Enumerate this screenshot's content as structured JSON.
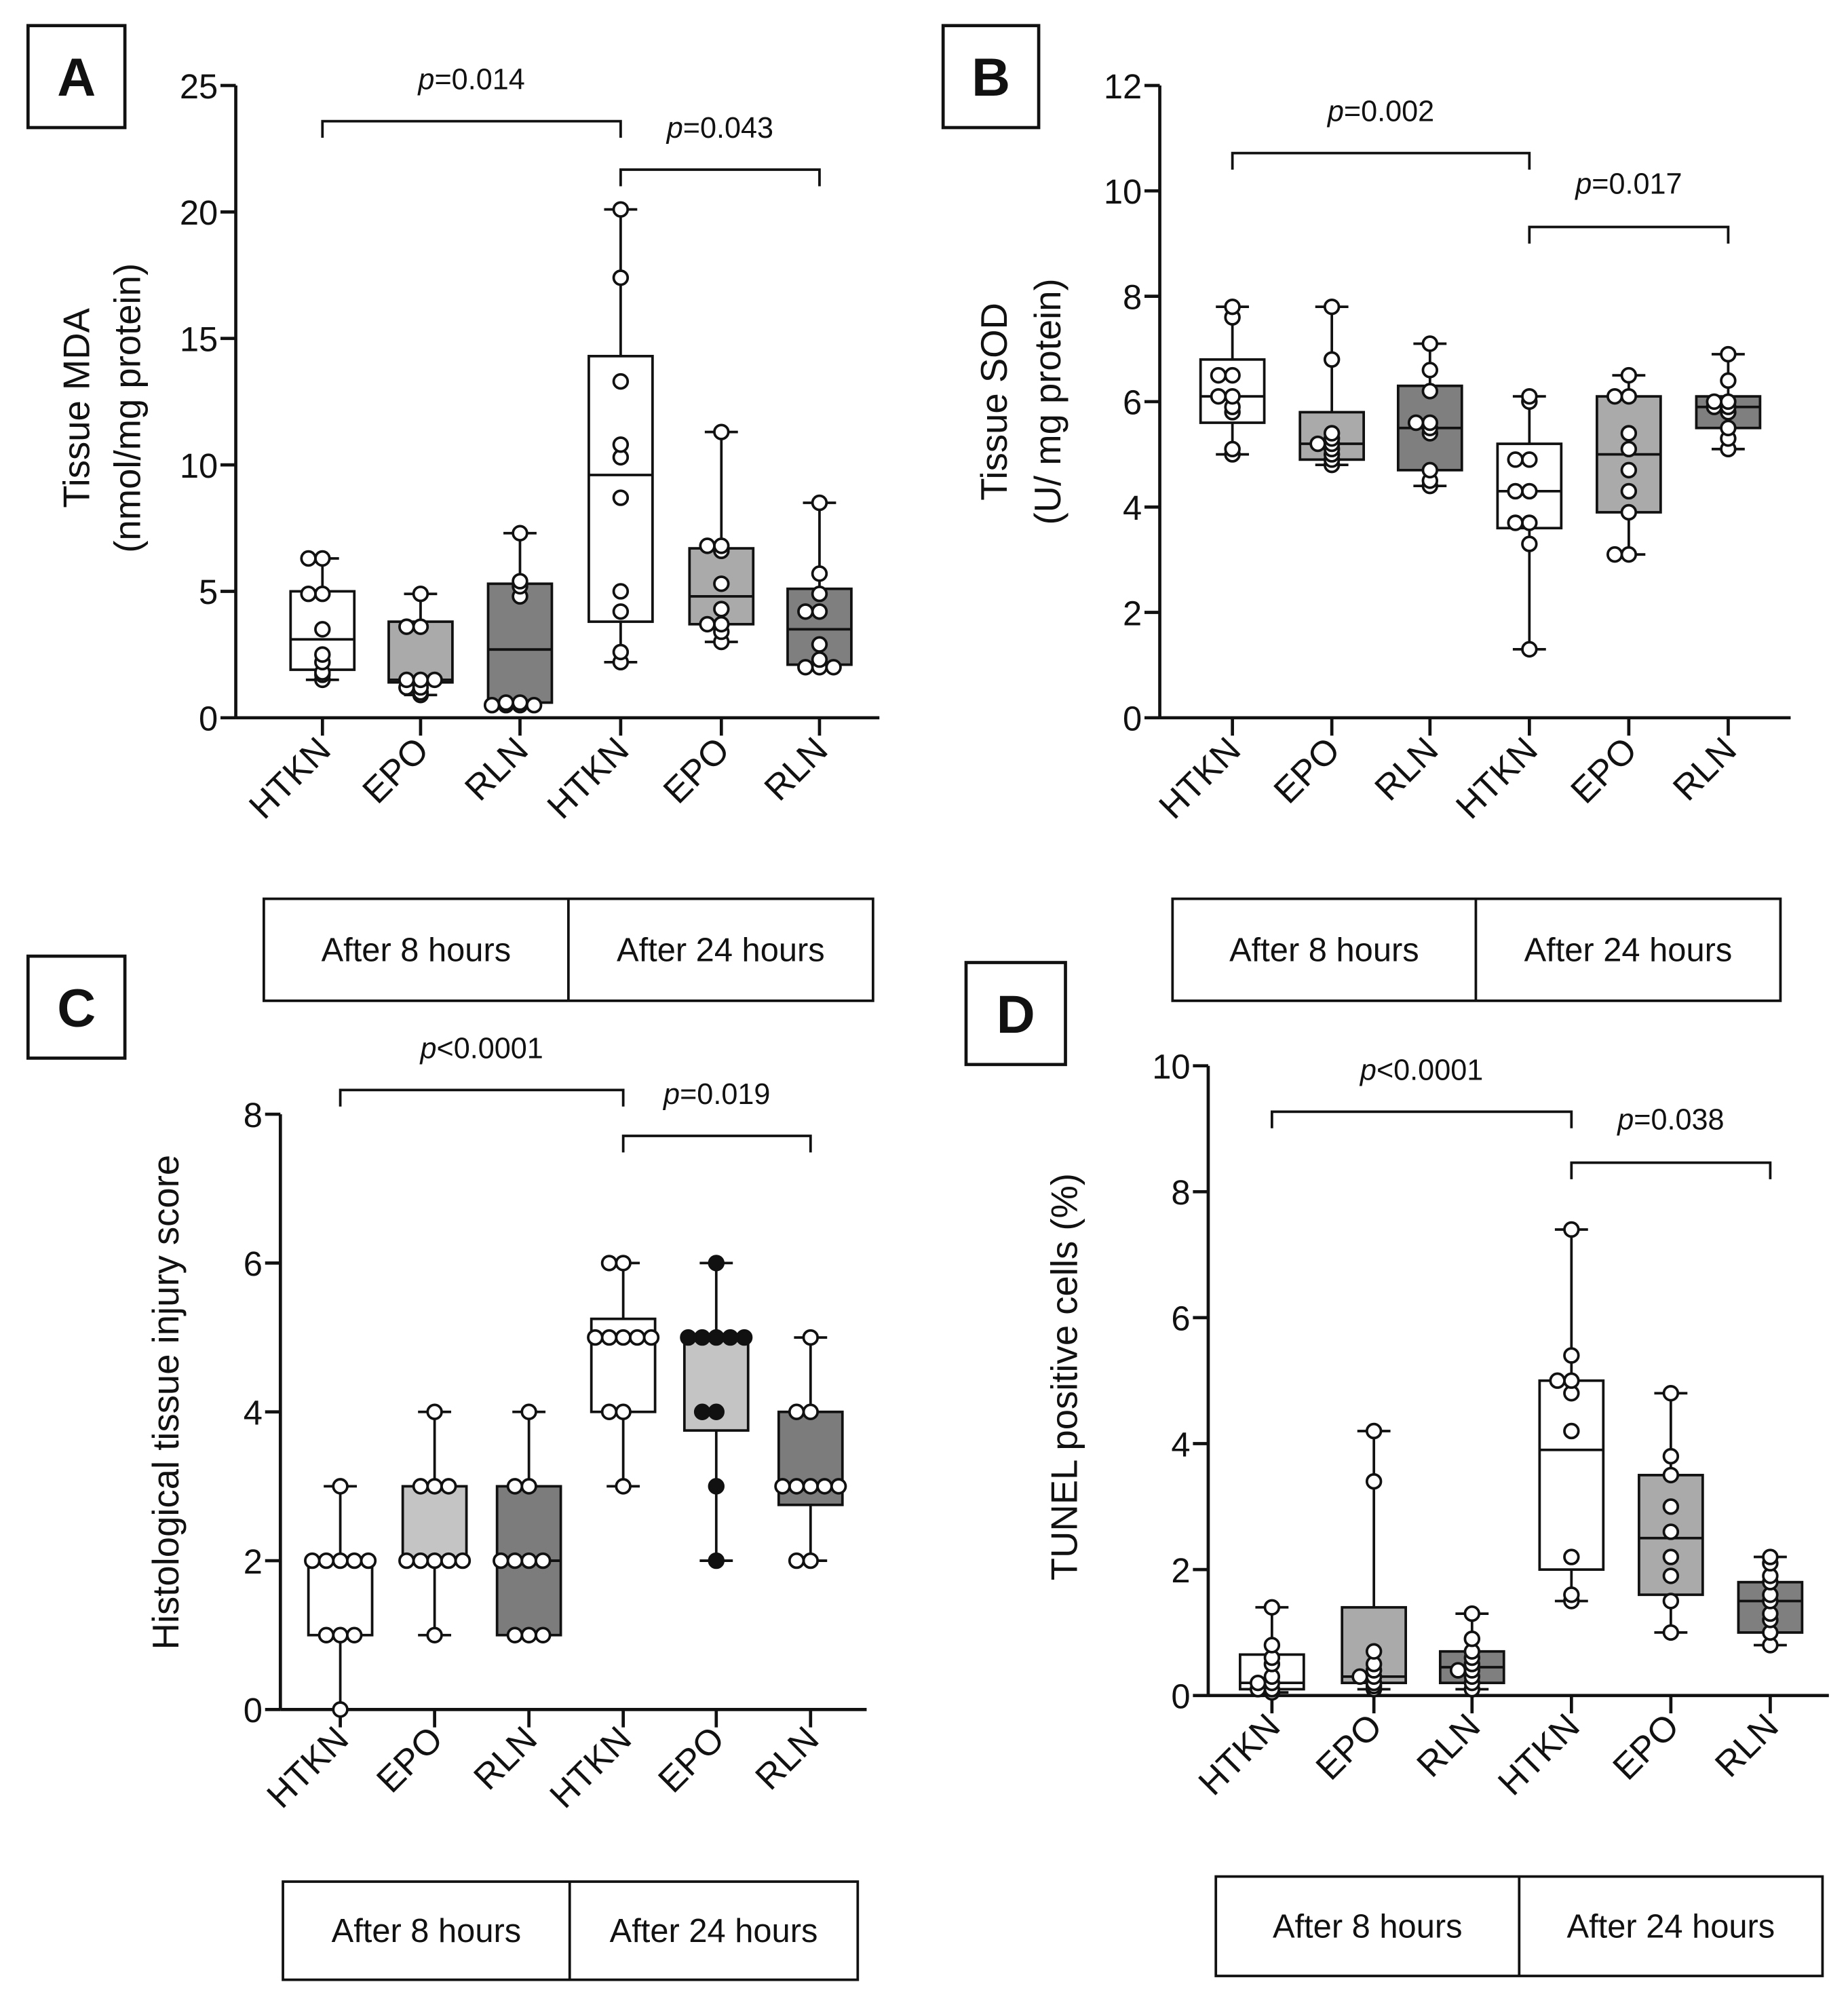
{
  "chart_data": [
    {
      "type": "box",
      "panel_label": "A",
      "ylabel": [
        "Tissue MDA",
        "(nmol/mg protein)"
      ],
      "ylim": [
        0,
        25
      ],
      "yticks": [
        0,
        5,
        10,
        15,
        20,
        25
      ],
      "ytick_labels": [
        "0",
        "5",
        "10",
        "15",
        "20",
        "25"
      ],
      "categories": [
        "HTKN",
        "EPO",
        "RLN",
        "HTKN",
        "EPO",
        "RLN"
      ],
      "groups": [
        "After 8 hours",
        "After 24 hours"
      ],
      "annotations": [
        {
          "from": 0,
          "to": 3,
          "p": "p",
          "text": "=0.014"
        },
        {
          "from": 3,
          "to": 5,
          "p": "p",
          "text": "=0.043"
        }
      ],
      "fills": [
        "#ffffff",
        "#a9aaa9",
        "#7f7f7f",
        "#ffffff",
        "#a9aaa9",
        "#7f7f7f"
      ],
      "series": [
        {
          "min": 1.5,
          "q1": 1.9,
          "median": 3.1,
          "q3": 5.0,
          "max": 6.3,
          "points": [
            1.5,
            1.7,
            1.8,
            2.2,
            2.5,
            3.5,
            4.9,
            4.9,
            6.3,
            6.3
          ]
        },
        {
          "min": 0.9,
          "q1": 1.4,
          "median": 1.5,
          "q3": 3.8,
          "max": 4.9,
          "points": [
            0.9,
            1.0,
            1.2,
            1.2,
            1.5,
            1.5,
            1.5,
            3.6,
            3.6,
            4.9
          ]
        },
        {
          "min": 0.5,
          "q1": 0.6,
          "median": 2.7,
          "q3": 5.3,
          "max": 7.3,
          "points": [
            0.5,
            0.5,
            0.5,
            0.5,
            0.6,
            0.6,
            4.8,
            5.2,
            5.4,
            7.3
          ]
        },
        {
          "min": 2.2,
          "q1": 3.8,
          "median": 9.6,
          "q3": 14.3,
          "max": 20.1,
          "points": [
            2.2,
            2.6,
            4.2,
            5.0,
            8.7,
            10.3,
            10.8,
            13.3,
            17.4,
            20.1
          ]
        },
        {
          "min": 3.0,
          "q1": 3.7,
          "median": 4.8,
          "q3": 6.7,
          "max": 11.3,
          "points": [
            3.0,
            3.4,
            3.7,
            3.7,
            4.3,
            5.3,
            6.6,
            6.8,
            6.8,
            11.3
          ]
        },
        {
          "min": 2.0,
          "q1": 2.1,
          "median": 3.5,
          "q3": 5.1,
          "max": 8.5,
          "points": [
            2.0,
            2.0,
            2.0,
            2.3,
            2.9,
            4.2,
            4.2,
            4.9,
            5.7,
            8.5
          ]
        }
      ]
    },
    {
      "type": "box",
      "panel_label": "B",
      "ylabel": [
        "Tissue SOD",
        "(U/ mg protein)"
      ],
      "ylim": [
        0,
        12
      ],
      "yticks": [
        0,
        2,
        4,
        6,
        8,
        10,
        12
      ],
      "ytick_labels": [
        "0",
        "2",
        "4",
        "6",
        "8",
        "10",
        "12"
      ],
      "categories": [
        "HTKN",
        "EPO",
        "RLN",
        "HTKN",
        "EPO",
        "RLN"
      ],
      "groups": [
        "After 8 hours",
        "After 24 hours"
      ],
      "annotations": [
        {
          "from": 0,
          "to": 3,
          "p": "p",
          "text": "=0.002"
        },
        {
          "from": 3,
          "to": 5,
          "p": "p",
          "text": "=0.017"
        }
      ],
      "fills": [
        "#ffffff",
        "#a9aaa9",
        "#7f7f7f",
        "#ffffff",
        "#a9aaa9",
        "#7f7f7f"
      ],
      "series": [
        {
          "min": 5.0,
          "q1": 5.6,
          "median": 6.1,
          "q3": 6.8,
          "max": 7.8,
          "points": [
            5.0,
            5.1,
            5.8,
            5.9,
            6.1,
            6.1,
            6.5,
            6.5,
            7.6,
            7.8
          ]
        },
        {
          "min": 4.8,
          "q1": 4.9,
          "median": 5.2,
          "q3": 5.8,
          "max": 7.8,
          "points": [
            4.8,
            4.9,
            5.0,
            5.1,
            5.2,
            5.2,
            5.3,
            5.4,
            6.8,
            7.8
          ]
        },
        {
          "min": 4.4,
          "q1": 4.7,
          "median": 5.5,
          "q3": 6.3,
          "max": 7.1,
          "points": [
            4.4,
            4.5,
            4.7,
            5.4,
            5.5,
            5.6,
            5.6,
            6.2,
            6.6,
            7.1
          ]
        },
        {
          "min": 1.3,
          "q1": 3.6,
          "median": 4.3,
          "q3": 5.2,
          "max": 6.1,
          "points": [
            1.3,
            3.3,
            3.7,
            3.7,
            4.3,
            4.3,
            4.9,
            4.9,
            6.0,
            6.1
          ]
        },
        {
          "min": 3.1,
          "q1": 3.9,
          "median": 5.0,
          "q3": 6.1,
          "max": 6.5,
          "points": [
            3.1,
            3.1,
            3.9,
            4.3,
            4.7,
            5.1,
            5.4,
            6.1,
            6.1,
            6.5
          ]
        },
        {
          "min": 5.1,
          "q1": 5.5,
          "median": 5.9,
          "q3": 6.1,
          "max": 6.9,
          "points": [
            5.1,
            5.3,
            5.5,
            5.8,
            5.9,
            5.9,
            6.0,
            6.0,
            6.4,
            6.9
          ]
        }
      ]
    },
    {
      "type": "box",
      "panel_label": "C",
      "ylabel": [
        "Histological tissue injury score"
      ],
      "ylim": [
        0,
        8
      ],
      "yticks": [
        0,
        2,
        4,
        6,
        8
      ],
      "ytick_labels": [
        "0",
        "2",
        "4",
        "6",
        "8"
      ],
      "categories": [
        "HTKN",
        "EPO",
        "RLN",
        "HTKN",
        "EPO",
        "RLN"
      ],
      "groups": [
        "After 8 hours",
        "After 24 hours"
      ],
      "annotations": [
        {
          "from": 0,
          "to": 3,
          "p": "p",
          "text": "<0.0001"
        },
        {
          "from": 3,
          "to": 5,
          "p": "p",
          "text": "=0.019"
        }
      ],
      "fills": [
        "#ffffff",
        "#c4c4c4",
        "#7c7c7c",
        "#ffffff",
        "#c4c4c4",
        "#7c7c7c"
      ],
      "filled_points": [
        false,
        false,
        false,
        false,
        true,
        false
      ],
      "series": [
        {
          "min": 0,
          "q1": 1,
          "median": 2,
          "q3": 2,
          "max": 3,
          "points": [
            0,
            1,
            1,
            1,
            2,
            2,
            2,
            2,
            2,
            3
          ]
        },
        {
          "min": 1,
          "q1": 2,
          "median": 2,
          "q3": 3,
          "max": 4,
          "points": [
            1,
            2,
            2,
            2,
            2,
            2,
            3,
            3,
            3,
            4
          ]
        },
        {
          "min": 1,
          "q1": 1,
          "median": 2,
          "q3": 3,
          "max": 4,
          "points": [
            1,
            1,
            1,
            2,
            2,
            2,
            2,
            3,
            3,
            4
          ]
        },
        {
          "min": 3,
          "q1": 4,
          "median": 5,
          "q3": 5.25,
          "max": 6,
          "points": [
            3,
            4,
            4,
            5,
            5,
            5,
            5,
            5,
            6,
            6
          ]
        },
        {
          "min": 2,
          "q1": 3.75,
          "median": 5,
          "q3": 5,
          "max": 6,
          "points": [
            2,
            3,
            4,
            4,
            5,
            5,
            5,
            5,
            5,
            6
          ]
        },
        {
          "min": 2,
          "q1": 2.75,
          "median": 3,
          "q3": 4,
          "max": 5,
          "points": [
            2,
            2,
            3,
            3,
            3,
            3,
            3,
            4,
            4,
            5
          ]
        }
      ]
    },
    {
      "type": "box",
      "panel_label": "D",
      "ylabel": [
        "TUNEL positive cells (%)"
      ],
      "ylim": [
        0,
        10
      ],
      "yticks": [
        0,
        2,
        4,
        6,
        8,
        10
      ],
      "ytick_labels": [
        "0",
        "2",
        "4",
        "6",
        "8",
        "10"
      ],
      "categories": [
        "HTKN",
        "EPO",
        "RLN",
        "HTKN",
        "EPO",
        "RLN"
      ],
      "groups": [
        "After 8 hours",
        "After 24 hours"
      ],
      "annotations": [
        {
          "from": 0,
          "to": 3,
          "p": "p",
          "text": "<0.0001"
        },
        {
          "from": 3,
          "to": 5,
          "p": "p",
          "text": "=0.038"
        }
      ],
      "fills": [
        "#ffffff",
        "#a9aaa9",
        "#7f7f7f",
        "#ffffff",
        "#a9aaa9",
        "#7f7f7f"
      ],
      "series": [
        {
          "min": 0.05,
          "q1": 0.1,
          "median": 0.2,
          "q3": 0.65,
          "max": 1.4,
          "points": [
            0.05,
            0.1,
            0.1,
            0.2,
            0.2,
            0.3,
            0.5,
            0.6,
            0.8,
            1.4
          ]
        },
        {
          "min": 0.1,
          "q1": 0.2,
          "median": 0.3,
          "q3": 1.4,
          "max": 4.2,
          "points": [
            0.1,
            0.15,
            0.2,
            0.3,
            0.3,
            0.4,
            0.5,
            0.7,
            3.4,
            4.2
          ]
        },
        {
          "min": 0.1,
          "q1": 0.2,
          "median": 0.45,
          "q3": 0.7,
          "max": 1.3,
          "points": [
            0.1,
            0.2,
            0.3,
            0.4,
            0.4,
            0.5,
            0.6,
            0.7,
            0.9,
            1.3
          ]
        },
        {
          "min": 1.5,
          "q1": 2.0,
          "median": 3.9,
          "q3": 5.0,
          "max": 7.4,
          "points": [
            1.5,
            1.6,
            2.2,
            4.2,
            4.8,
            5.0,
            5.0,
            5.4,
            7.4
          ]
        },
        {
          "min": 1.0,
          "q1": 1.6,
          "median": 2.5,
          "q3": 3.5,
          "max": 4.8,
          "points": [
            1.0,
            1.5,
            1.9,
            2.2,
            2.6,
            3.0,
            3.5,
            3.8,
            4.8
          ]
        },
        {
          "min": 0.8,
          "q1": 1.0,
          "median": 1.5,
          "q3": 1.8,
          "max": 2.2,
          "points": [
            0.8,
            1.0,
            1.2,
            1.3,
            1.5,
            1.6,
            1.8,
            1.9,
            2.1,
            2.2
          ]
        }
      ]
    }
  ]
}
